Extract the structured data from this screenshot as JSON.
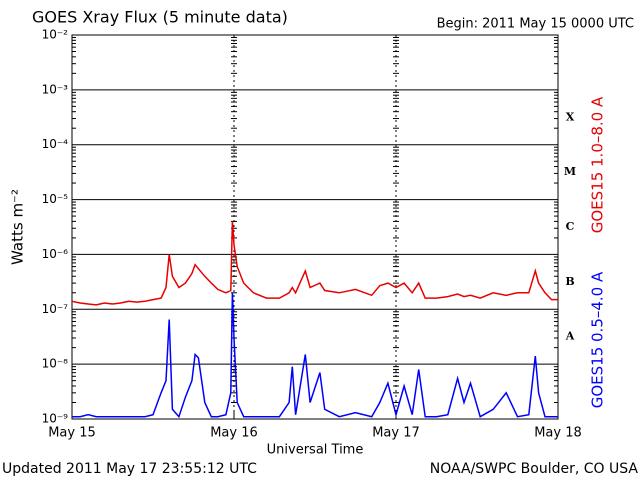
{
  "chart_data": {
    "type": "line",
    "title": "GOES Xray Flux (5 minute data)",
    "subtitle": "Begin:  2011 May 15 0000 UTC",
    "ylabel": "Watts m⁻²",
    "xlabel": "Universal Time",
    "footer_left": "Updated 2011 May 17 23:55:12 UTC",
    "footer_right": "NOAA/SWPC Boulder, CO USA",
    "log_scale": true,
    "grid": true,
    "xlim": [
      0,
      3
    ],
    "xticks": [
      {
        "value": 0,
        "label": "May 15"
      },
      {
        "value": 1,
        "label": "May 16"
      },
      {
        "value": 2,
        "label": "May 17"
      },
      {
        "value": 3,
        "label": "May 18"
      }
    ],
    "ylim": [
      1e-09,
      0.01
    ],
    "yticks": [
      {
        "value": 1e-09,
        "label": "10⁻⁹"
      },
      {
        "value": 1e-08,
        "label": "10⁻⁸"
      },
      {
        "value": 1e-07,
        "label": "10⁻⁷"
      },
      {
        "value": 1e-06,
        "label": "10⁻⁶"
      },
      {
        "value": 1e-05,
        "label": "10⁻⁵"
      },
      {
        "value": 0.0001,
        "label": "10⁻⁴"
      },
      {
        "value": 0.001,
        "label": "10⁻³"
      },
      {
        "value": 0.01,
        "label": "10⁻²"
      }
    ],
    "flare_classes": [
      {
        "label": "X",
        "value": 0.0001
      },
      {
        "label": "M",
        "value": 1e-05
      },
      {
        "label": "C",
        "value": 1e-06
      },
      {
        "label": "B",
        "value": 1e-07
      },
      {
        "label": "A",
        "value": 1e-08
      }
    ],
    "x": [
      0,
      0.05,
      0.1,
      0.15,
      0.2,
      0.25,
      0.3,
      0.35,
      0.4,
      0.45,
      0.5,
      0.55,
      0.58,
      0.6,
      0.62,
      0.66,
      0.7,
      0.74,
      0.76,
      0.78,
      0.82,
      0.86,
      0.9,
      0.95,
      0.98,
      0.99,
      1.0,
      1.02,
      1.06,
      1.12,
      1.2,
      1.28,
      1.34,
      1.36,
      1.38,
      1.44,
      1.47,
      1.53,
      1.56,
      1.65,
      1.75,
      1.85,
      1.9,
      1.95,
      2.0,
      2.05,
      2.1,
      2.14,
      2.18,
      2.25,
      2.32,
      2.38,
      2.42,
      2.46,
      2.52,
      2.6,
      2.68,
      2.75,
      2.82,
      2.86,
      2.88,
      2.92,
      2.96,
      3.0
    ],
    "series": [
      {
        "name": "GOES15 1.0–8.0 A",
        "color": "#e80000",
        "values": [
          1.4e-07,
          1.3e-07,
          1.25e-07,
          1.2e-07,
          1.3e-07,
          1.25e-07,
          1.3e-07,
          1.4e-07,
          1.35e-07,
          1.4e-07,
          1.5e-07,
          1.6e-07,
          2.5e-07,
          1e-06,
          4e-07,
          2.5e-07,
          3e-07,
          4.5e-07,
          6.5e-07,
          5.5e-07,
          4e-07,
          3e-07,
          2.3e-07,
          2e-07,
          2.2e-07,
          4e-06,
          1.5e-06,
          6e-07,
          3e-07,
          2e-07,
          1.6e-07,
          1.6e-07,
          2e-07,
          2.5e-07,
          2e-07,
          5e-07,
          2.5e-07,
          3e-07,
          2.2e-07,
          2e-07,
          2.3e-07,
          1.8e-07,
          2.7e-07,
          3e-07,
          2.5e-07,
          3e-07,
          2e-07,
          3e-07,
          1.6e-07,
          1.6e-07,
          1.7e-07,
          1.9e-07,
          1.7e-07,
          1.8e-07,
          1.6e-07,
          2e-07,
          1.8e-07,
          2e-07,
          2e-07,
          5e-07,
          3e-07,
          2e-07,
          1.5e-07,
          1.5e-07
        ]
      },
      {
        "name": "GOES15 0.5–4.0 A",
        "color": "#0000ff",
        "values": [
          1.1e-09,
          1.1e-09,
          1.2e-09,
          1.1e-09,
          1.1e-09,
          1.1e-09,
          1.1e-09,
          1.1e-09,
          1.1e-09,
          1.1e-09,
          1.2e-09,
          3e-09,
          5e-09,
          6.5e-08,
          1.5e-09,
          1.1e-09,
          2.5e-09,
          5e-09,
          1.5e-08,
          1.3e-08,
          2e-09,
          1.1e-09,
          1.1e-09,
          1.2e-09,
          3e-09,
          2e-07,
          3e-08,
          2e-09,
          1.1e-09,
          1.1e-09,
          1.1e-09,
          1.1e-09,
          2e-09,
          9e-09,
          1.2e-09,
          1.5e-08,
          2e-09,
          7e-09,
          1.5e-09,
          1.1e-09,
          1.3e-09,
          1.1e-09,
          2e-09,
          4.5e-09,
          1.2e-09,
          4e-09,
          1.2e-09,
          8e-09,
          1.1e-09,
          1.1e-09,
          1.2e-09,
          5.5e-09,
          2e-09,
          4.5e-09,
          1.1e-09,
          1.5e-09,
          3e-09,
          1.1e-09,
          1.2e-09,
          1.4e-08,
          3e-09,
          1.1e-09,
          1.1e-09,
          1.1e-09
        ]
      }
    ]
  }
}
